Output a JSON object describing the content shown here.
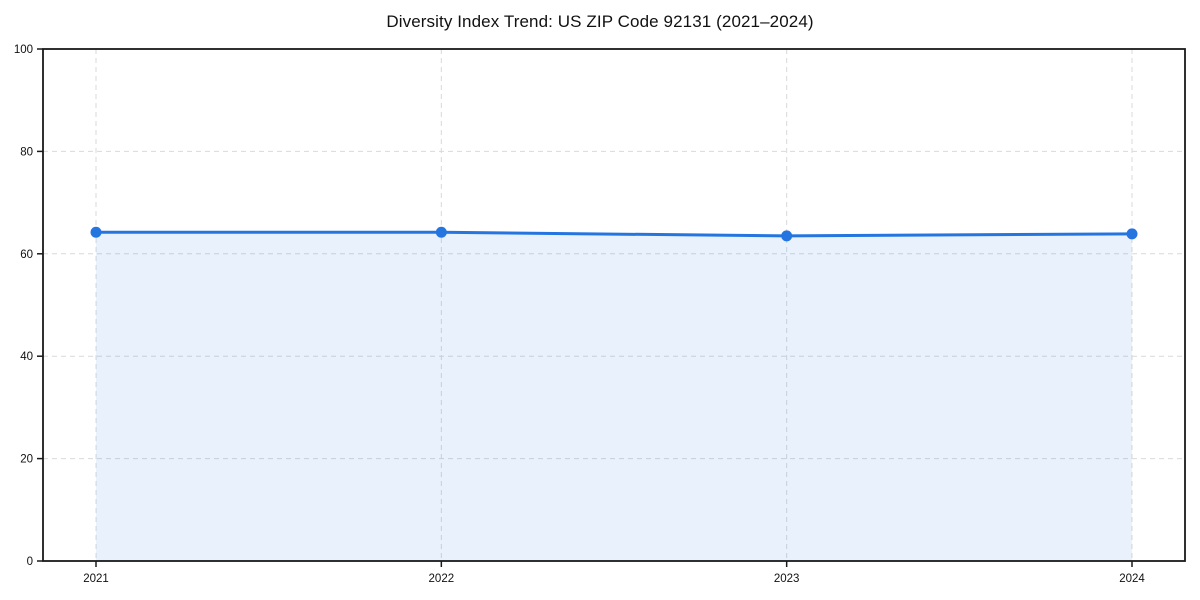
{
  "page": {
    "background_color": "#ffffff"
  },
  "chart_data": {
    "type": "line",
    "title": "Diversity Index Trend: US ZIP Code 92131 (2021–2024)",
    "x": [
      2021,
      2022,
      2023,
      2024
    ],
    "x_tick_labels": [
      "2021",
      "2022",
      "2023",
      "2024"
    ],
    "series": [
      {
        "name": "Diversity Index",
        "values": [
          64.2,
          64.2,
          63.5,
          63.9
        ]
      }
    ],
    "xlabel": "",
    "ylabel": "",
    "ylim": [
      0,
      100
    ],
    "y_ticks": [
      0,
      20,
      40,
      60,
      80,
      100
    ],
    "grid": "dashed",
    "legend_position": "none",
    "area_fill": true,
    "marker": "circle",
    "colors": {
      "line": "#2575e0",
      "marker": "#2575e0",
      "area_fill": "rgba(37, 117, 224, 0.10)",
      "gridline": "#d9d9d9",
      "axis_border": "#1a1a1a",
      "tick_text": "#111111",
      "title_text": "#111111"
    }
  }
}
